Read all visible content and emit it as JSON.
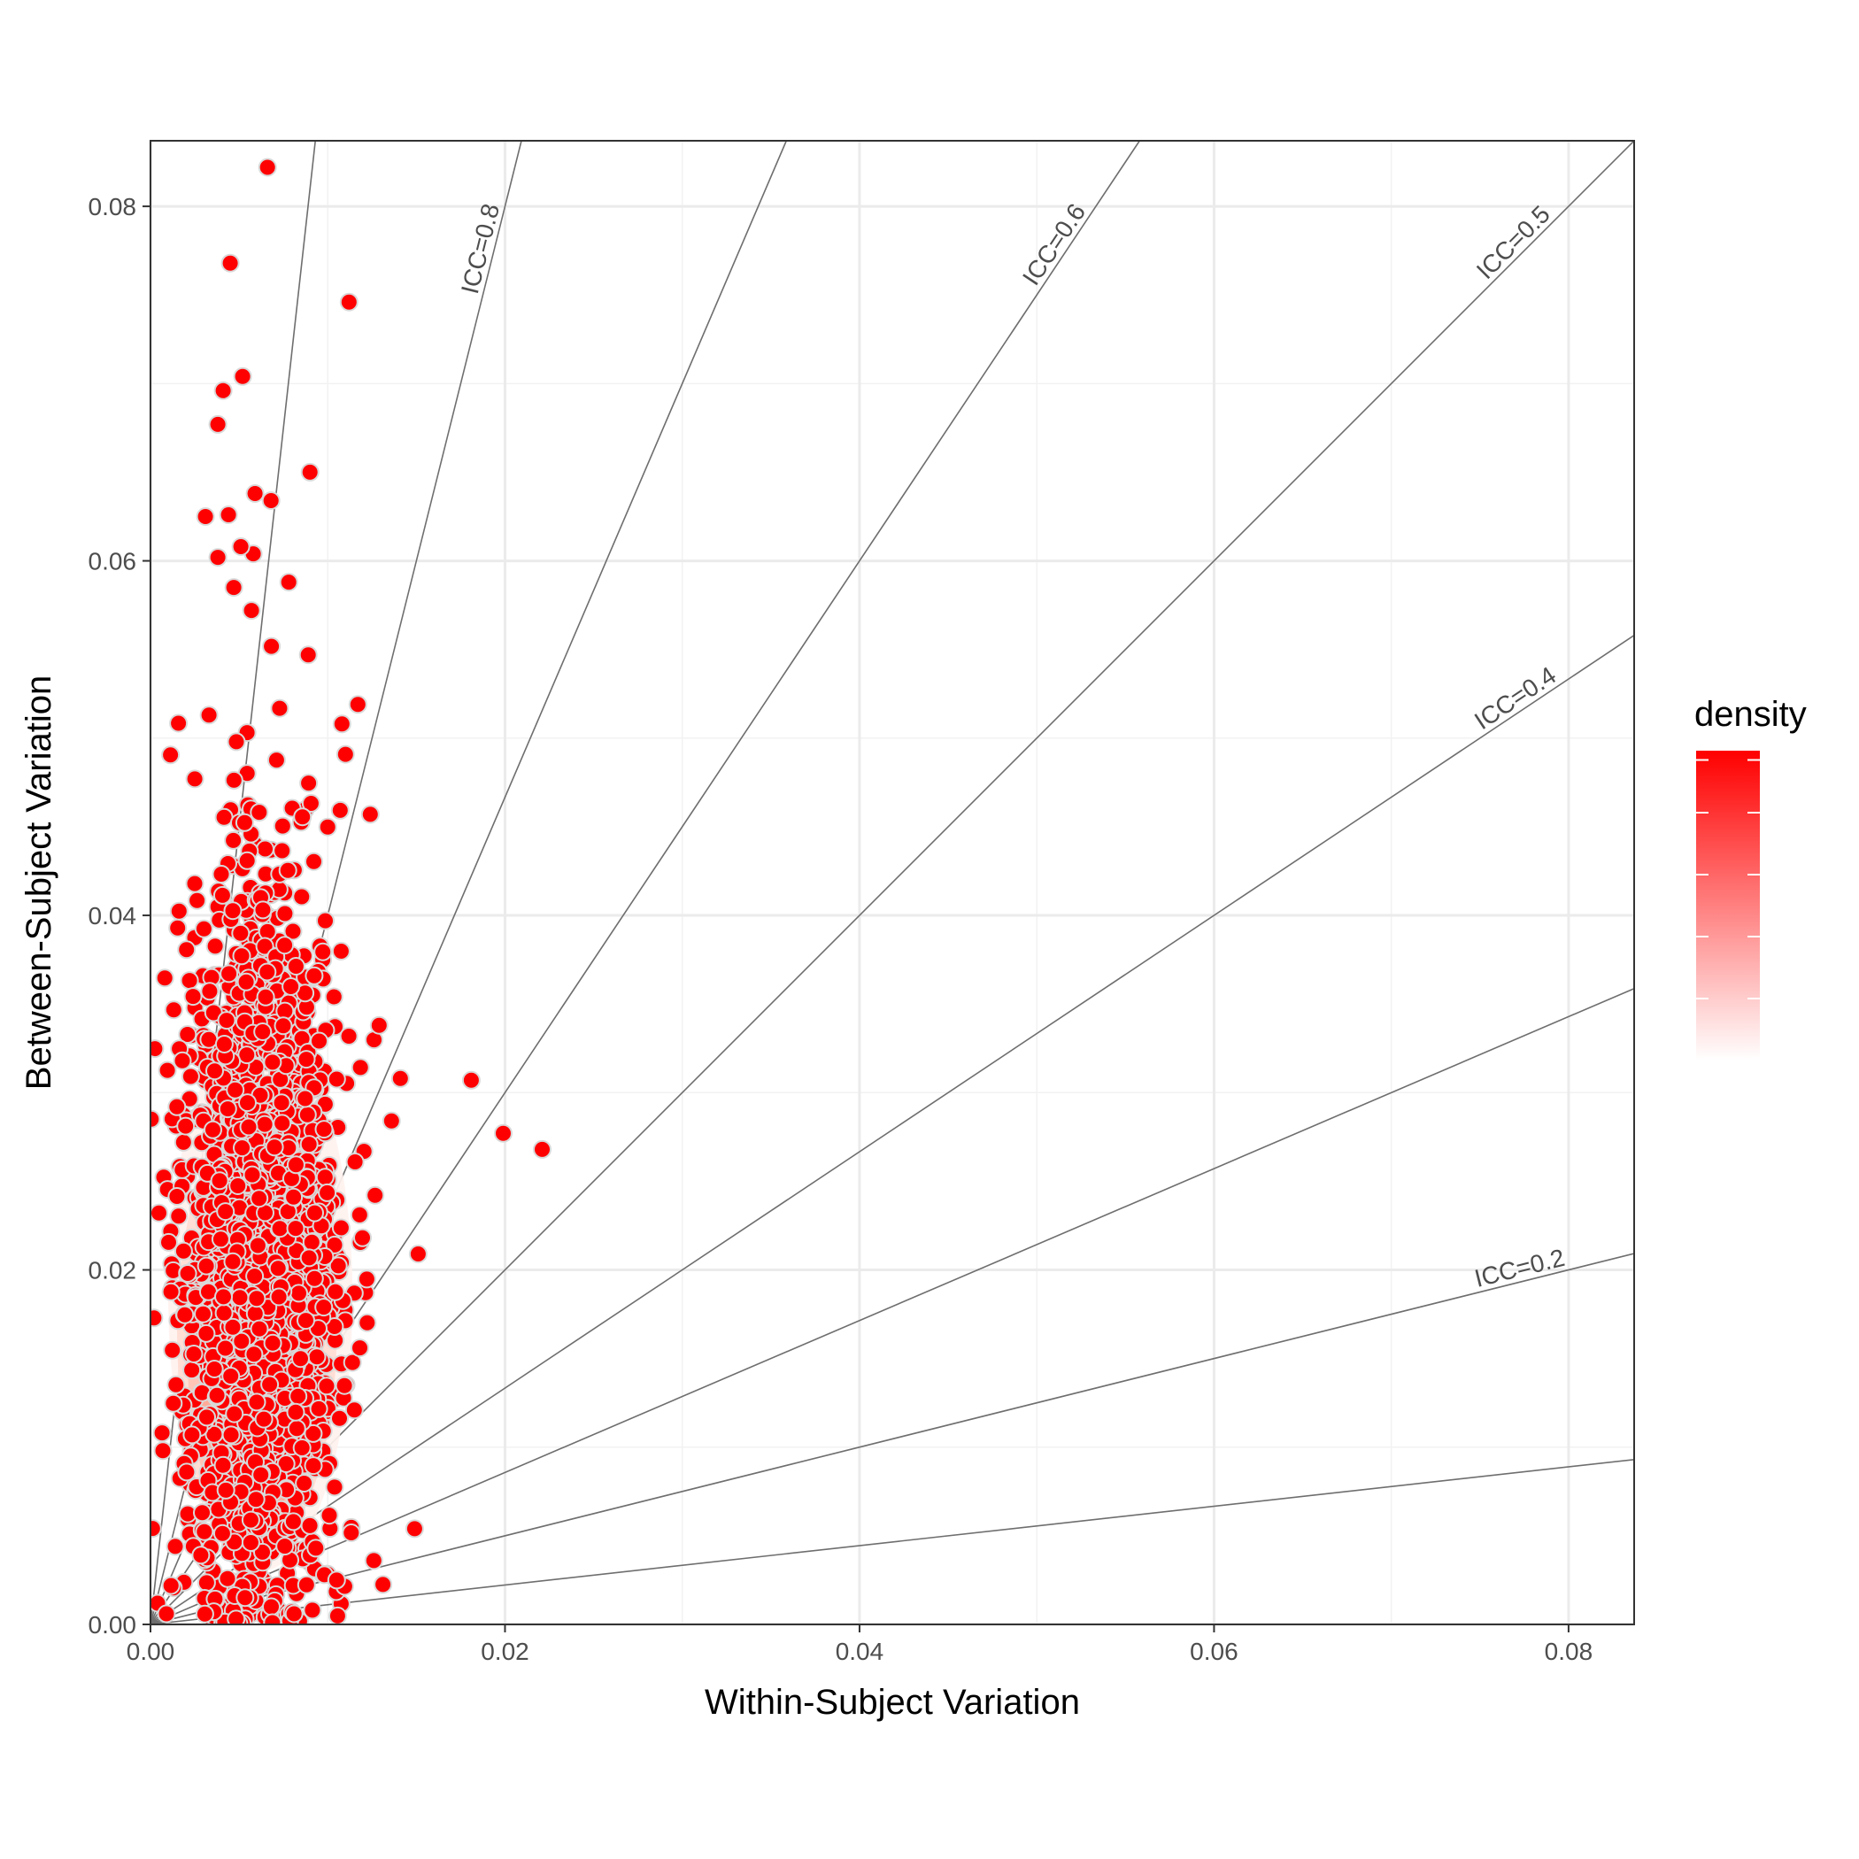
{
  "chart_data": {
    "type": "scatter",
    "title": "",
    "xlabel": "Within-Subject Variation",
    "ylabel": "Between-Subject Variation",
    "xlim": [
      0,
      0.0837
    ],
    "ylim": [
      0,
      0.0837
    ],
    "x_ticks": [
      {
        "value": 0.0,
        "label": "0.00"
      },
      {
        "value": 0.02,
        "label": "0.02"
      },
      {
        "value": 0.04,
        "label": "0.04"
      },
      {
        "value": 0.06,
        "label": "0.06"
      },
      {
        "value": 0.08,
        "label": "0.08"
      }
    ],
    "y_ticks": [
      {
        "value": 0.0,
        "label": "0.00"
      },
      {
        "value": 0.02,
        "label": "0.02"
      },
      {
        "value": 0.04,
        "label": "0.04"
      },
      {
        "value": 0.06,
        "label": "0.06"
      },
      {
        "value": 0.08,
        "label": "0.08"
      }
    ],
    "grid": true,
    "legend": {
      "title": "density",
      "placement": "right",
      "low_color": "#ffffff",
      "high_color": "#ff0000"
    },
    "point_color": "#ff0000",
    "point_outline": "#d9d9d9",
    "icc_lines": [
      {
        "icc": 0.9,
        "label": ""
      },
      {
        "icc": 0.8,
        "label": "ICC=0.8"
      },
      {
        "icc": 0.7,
        "label": ""
      },
      {
        "icc": 0.6,
        "label": "ICC=0.6"
      },
      {
        "icc": 0.5,
        "label": "ICC=0.5"
      },
      {
        "icc": 0.4,
        "label": "ICC=0.4"
      },
      {
        "icc": 0.3,
        "label": ""
      },
      {
        "icc": 0.2,
        "label": "ICC=0.2"
      },
      {
        "icc": 0.1,
        "label": ""
      }
    ],
    "density_contours": [
      {
        "level": 1,
        "color": "#fff2ef",
        "cx": 0.0062,
        "cy": 0.0185,
        "rx": 0.0052,
        "ry": 0.0155
      },
      {
        "level": 2,
        "color": "#ffdcd3",
        "cx": 0.006,
        "cy": 0.0165,
        "rx": 0.0045,
        "ry": 0.0125
      },
      {
        "level": 3,
        "color": "#ffc3b5",
        "cx": 0.0059,
        "cy": 0.015,
        "rx": 0.0038,
        "ry": 0.0102
      },
      {
        "level": 4,
        "color": "#ffa896",
        "cx": 0.0058,
        "cy": 0.0135,
        "rx": 0.003,
        "ry": 0.008
      },
      {
        "level": 5,
        "color": "#ff8a75",
        "cx": 0.0057,
        "cy": 0.0125,
        "rx": 0.0022,
        "ry": 0.006
      },
      {
        "level": 6,
        "color": "#ff6a53",
        "cx": 0.0057,
        "cy": 0.012,
        "rx": 0.0015,
        "ry": 0.0043
      },
      {
        "level": 7,
        "color": "#ff4a33",
        "cx": 0.0057,
        "cy": 0.0118,
        "rx": 0.0009,
        "ry": 0.003
      }
    ],
    "highlighted_points": [
      [
        0.0066,
        0.0822
      ],
      [
        0.0045,
        0.0768
      ],
      [
        0.0112,
        0.0746
      ],
      [
        0.0052,
        0.0704
      ],
      [
        0.0041,
        0.0696
      ],
      [
        0.0038,
        0.0677
      ],
      [
        0.009,
        0.065
      ],
      [
        0.0059,
        0.0638
      ],
      [
        0.0068,
        0.0634
      ],
      [
        0.0031,
        0.0625
      ],
      [
        0.0044,
        0.0626
      ],
      [
        0.0058,
        0.0604
      ],
      [
        0.0038,
        0.0602
      ],
      [
        0.0051,
        0.0608
      ],
      [
        0.0078,
        0.0588
      ],
      [
        0.0047,
        0.0585
      ],
      [
        0.0057,
        0.0572
      ],
      [
        0.0089,
        0.0547
      ],
      [
        0.0033,
        0.0513
      ],
      [
        0.0108,
        0.0508
      ],
      [
        0.0117,
        0.0519
      ],
      [
        0.0025,
        0.0477
      ],
      [
        0.0124,
        0.0457
      ],
      [
        0.0018,
        0.0318
      ],
      [
        0.0181,
        0.0307
      ],
      [
        0.0199,
        0.0277
      ],
      [
        0.0221,
        0.0268
      ],
      [
        0.0141,
        0.0308
      ],
      [
        0.0136,
        0.0284
      ],
      [
        0.0151,
        0.0209
      ],
      [
        0.0149,
        0.0054
      ],
      [
        0.0081,
        0.0006
      ],
      [
        0.0004,
        0.0012
      ],
      [
        0.0009,
        0.0006
      ],
      [
        0.0014,
        0.0044
      ],
      [
        0.0021,
        0.0198
      ],
      [
        0.0129,
        0.0338
      ],
      [
        0.0118,
        0.0231
      ],
      [
        0.0126,
        0.0036
      ],
      [
        0.0105,
        0.0025
      ]
    ],
    "cloud": {
      "n": 2200,
      "center_x": 0.0062,
      "center_y": 0.0205,
      "sd_x": 0.0021,
      "sd_y": 0.0105,
      "seed": 7
    }
  }
}
